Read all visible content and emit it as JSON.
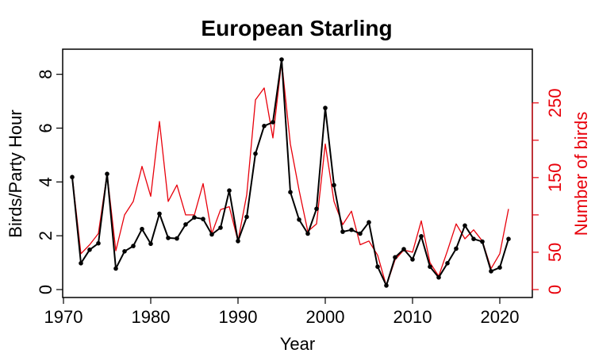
{
  "chart_data": {
    "type": "line",
    "title": "European Starling",
    "xlabel": "Year",
    "ylabel": "Birds/Party Hour",
    "y2label": "Number of birds",
    "xlim": [
      1970,
      2022
    ],
    "ylim": [
      0,
      8.8
    ],
    "y2lim": [
      0,
      300
    ],
    "x_ticks": [
      1970,
      1980,
      1990,
      2000,
      2010,
      2020
    ],
    "y_ticks": [
      0,
      2,
      4,
      6,
      8
    ],
    "y2_ticks": [
      0,
      50,
      100,
      150,
      200,
      250
    ],
    "y2_tick_labels": [
      "0",
      "50",
      "",
      "150",
      "",
      "250"
    ],
    "grid": false,
    "x": [
      1971,
      1972,
      1973,
      1974,
      1975,
      1976,
      1977,
      1978,
      1979,
      1980,
      1981,
      1982,
      1983,
      1984,
      1985,
      1986,
      1987,
      1988,
      1989,
      1990,
      1991,
      1992,
      1993,
      1994,
      1995,
      1996,
      1997,
      1998,
      1999,
      2000,
      2001,
      2002,
      2003,
      2004,
      2005,
      2006,
      2007,
      2008,
      2009,
      2010,
      2011,
      2012,
      2013,
      2014,
      2015,
      2016,
      2017,
      2018,
      2019,
      2020,
      2021
    ],
    "series": [
      {
        "axis": "left",
        "color": "#000000",
        "markers": true,
        "values": [
          4.18,
          0.98,
          1.48,
          1.72,
          4.3,
          0.78,
          1.42,
          1.62,
          2.25,
          1.7,
          2.82,
          1.92,
          1.9,
          2.42,
          2.68,
          2.62,
          2.05,
          2.3,
          3.68,
          1.8,
          2.7,
          5.05,
          6.08,
          6.22,
          8.55,
          3.62,
          2.6,
          2.08,
          3.0,
          6.75,
          3.88,
          2.15,
          2.22,
          2.08,
          2.5,
          0.85,
          0.15,
          1.2,
          1.5,
          1.12,
          1.98,
          0.85,
          0.45,
          0.98,
          1.52,
          2.38,
          1.88,
          1.78,
          0.68,
          0.82,
          1.88
        ]
      },
      {
        "axis": "right",
        "color": "#e8000b",
        "markers": false,
        "values": [
          152,
          48,
          60,
          75,
          155,
          52,
          100,
          118,
          165,
          125,
          225,
          118,
          140,
          100,
          100,
          142,
          75,
          107,
          111,
          65,
          127,
          254,
          270,
          203,
          306,
          195,
          133,
          78,
          88,
          195,
          118,
          87,
          105,
          60,
          65,
          46,
          5,
          40,
          53,
          50,
          92,
          36,
          18,
          52,
          88,
          68,
          80,
          65,
          28,
          48,
          108
        ]
      }
    ]
  }
}
